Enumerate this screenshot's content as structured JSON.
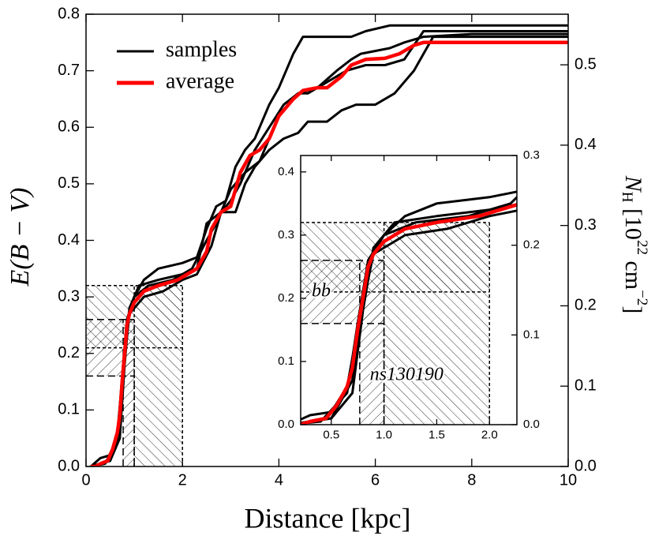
{
  "chart_data": [
    {
      "type": "line",
      "xlabel": "Distance [kpc]",
      "ylabel": "E(B − V)",
      "y2label": [
        "N",
        "H",
        " [10",
        "22",
        " cm",
        "−2",
        "]"
      ],
      "xlim": [
        0,
        10
      ],
      "ylim": [
        0,
        0.8
      ],
      "y2lim": [
        0,
        0.563
      ],
      "xticks": [
        0,
        2,
        4,
        6,
        8,
        10
      ],
      "yticks": [
        {
          "value": 0,
          "label": "0.0"
        },
        0.1,
        0.2,
        0.3,
        0.4,
        0.5,
        0.6,
        0.7,
        0.8
      ],
      "y2ticks": [
        {
          "value": 0,
          "label": "0.0"
        },
        0.1,
        0.2,
        0.3,
        0.4,
        0.5
      ],
      "legend": "upper left",
      "regions": [
        {
          "label": "bb",
          "distance": [
            0.77,
            1.0
          ],
          "ebv": [
            0.16,
            0.26
          ],
          "hatch": "/",
          "dash": "9 5"
        },
        {
          "label": "ns130190",
          "distance": [
            1.0,
            2.0
          ],
          "ebv": [
            0.21,
            0.32
          ],
          "hatch": "\\",
          "dash": "4 3"
        }
      ],
      "series": [
        {
          "name": "samples",
          "color": "#000000",
          "lines": [
            {
              "x": [
                0.1,
                0.3,
                0.5,
                0.65,
                0.75,
                0.85,
                1.0,
                1.2,
                1.5,
                2.0,
                2.3,
                2.5,
                2.7,
                2.9,
                3.1,
                3.3,
                3.5,
                3.8,
                4.0,
                4.3,
                4.5,
                5.5,
                5.8,
                6.3,
                10
              ],
              "values": [
                0,
                0.015,
                0.02,
                0.06,
                0.15,
                0.26,
                0.3,
                0.33,
                0.35,
                0.36,
                0.37,
                0.42,
                0.46,
                0.47,
                0.53,
                0.56,
                0.58,
                0.64,
                0.67,
                0.73,
                0.76,
                0.76,
                0.77,
                0.78,
                0.78
              ]
            },
            {
              "x": [
                0.1,
                0.5,
                0.7,
                0.8,
                0.9,
                1.2,
                1.6,
                2.0,
                2.3,
                2.6,
                2.8,
                3.1,
                3.3,
                3.5,
                3.8,
                4.1,
                4.4,
                4.6,
                5.0,
                5.3,
                5.6,
                6.0,
                6.4,
                6.8,
                7.2,
                10
              ],
              "values": [
                0,
                0.01,
                0.07,
                0.19,
                0.27,
                0.3,
                0.31,
                0.33,
                0.34,
                0.39,
                0.45,
                0.45,
                0.5,
                0.53,
                0.56,
                0.58,
                0.59,
                0.61,
                0.61,
                0.63,
                0.64,
                0.64,
                0.66,
                0.7,
                0.76,
                0.76
              ]
            },
            {
              "x": [
                0.1,
                0.5,
                0.7,
                0.8,
                0.9,
                1.1,
                1.5,
                2.0,
                2.3,
                2.5,
                2.8,
                3.0,
                3.2,
                3.5,
                3.8,
                4.1,
                4.4,
                4.6,
                5.0,
                5.4,
                5.8,
                6.2,
                6.6,
                7.0,
                8,
                10
              ],
              "values": [
                0,
                0.01,
                0.05,
                0.18,
                0.28,
                0.32,
                0.33,
                0.34,
                0.35,
                0.43,
                0.45,
                0.47,
                0.5,
                0.56,
                0.6,
                0.64,
                0.66,
                0.66,
                0.68,
                0.7,
                0.71,
                0.71,
                0.72,
                0.77,
                0.77,
                0.77
              ]
            },
            {
              "x": [
                0.1,
                0.4,
                0.65,
                0.75,
                0.85,
                1.0,
                1.3,
                1.8,
                2.2,
                2.5,
                2.7,
                3.0,
                3.3,
                3.6,
                4.0,
                4.4,
                4.8,
                5.2,
                5.5,
                5.7,
                6.3,
                6.6,
                7.0,
                8,
                10
              ],
              "values": [
                0,
                0.005,
                0.05,
                0.16,
                0.26,
                0.3,
                0.32,
                0.33,
                0.35,
                0.4,
                0.43,
                0.49,
                0.52,
                0.54,
                0.62,
                0.66,
                0.67,
                0.7,
                0.72,
                0.73,
                0.74,
                0.75,
                0.76,
                0.765,
                0.765
              ]
            }
          ]
        },
        {
          "name": "average",
          "color": "#ff0000",
          "x": [
            0.1,
            0.2,
            0.3,
            0.45,
            0.55,
            0.65,
            0.7,
            0.75,
            0.8,
            0.85,
            0.9,
            1.0,
            1.2,
            1.5,
            1.9,
            2.1,
            2.3,
            2.5,
            2.6,
            2.8,
            3.0,
            3.2,
            3.4,
            3.6,
            3.8,
            4.0,
            4.3,
            4.5,
            4.8,
            5.0,
            5.3,
            5.5,
            5.8,
            6.2,
            6.5,
            6.8,
            7.0,
            8,
            10
          ],
          "values": [
            0,
            0,
            0.005,
            0.01,
            0.03,
            0.06,
            0.09,
            0.15,
            0.2,
            0.25,
            0.27,
            0.29,
            0.31,
            0.32,
            0.33,
            0.34,
            0.35,
            0.38,
            0.42,
            0.45,
            0.46,
            0.52,
            0.55,
            0.56,
            0.58,
            0.62,
            0.65,
            0.665,
            0.67,
            0.67,
            0.69,
            0.71,
            0.72,
            0.722,
            0.73,
            0.745,
            0.75,
            0.75,
            0.75
          ]
        }
      ]
    },
    {
      "type": "inset",
      "xlim": [
        0.21,
        2.26
      ],
      "ylim": [
        0,
        0.426
      ],
      "y2lim": [
        0,
        0.3
      ],
      "xticks": [
        0.5,
        {
          "value": 1,
          "label": "1.0"
        },
        1.5,
        {
          "value": 2,
          "label": "2.0"
        }
      ],
      "yticks": [
        {
          "value": 0,
          "label": "0.0"
        },
        0.1,
        0.2,
        0.3,
        0.4
      ],
      "y2ticks": [
        {
          "value": 0,
          "label": "0.0"
        },
        0.1,
        0.2,
        0.3
      ]
    }
  ]
}
